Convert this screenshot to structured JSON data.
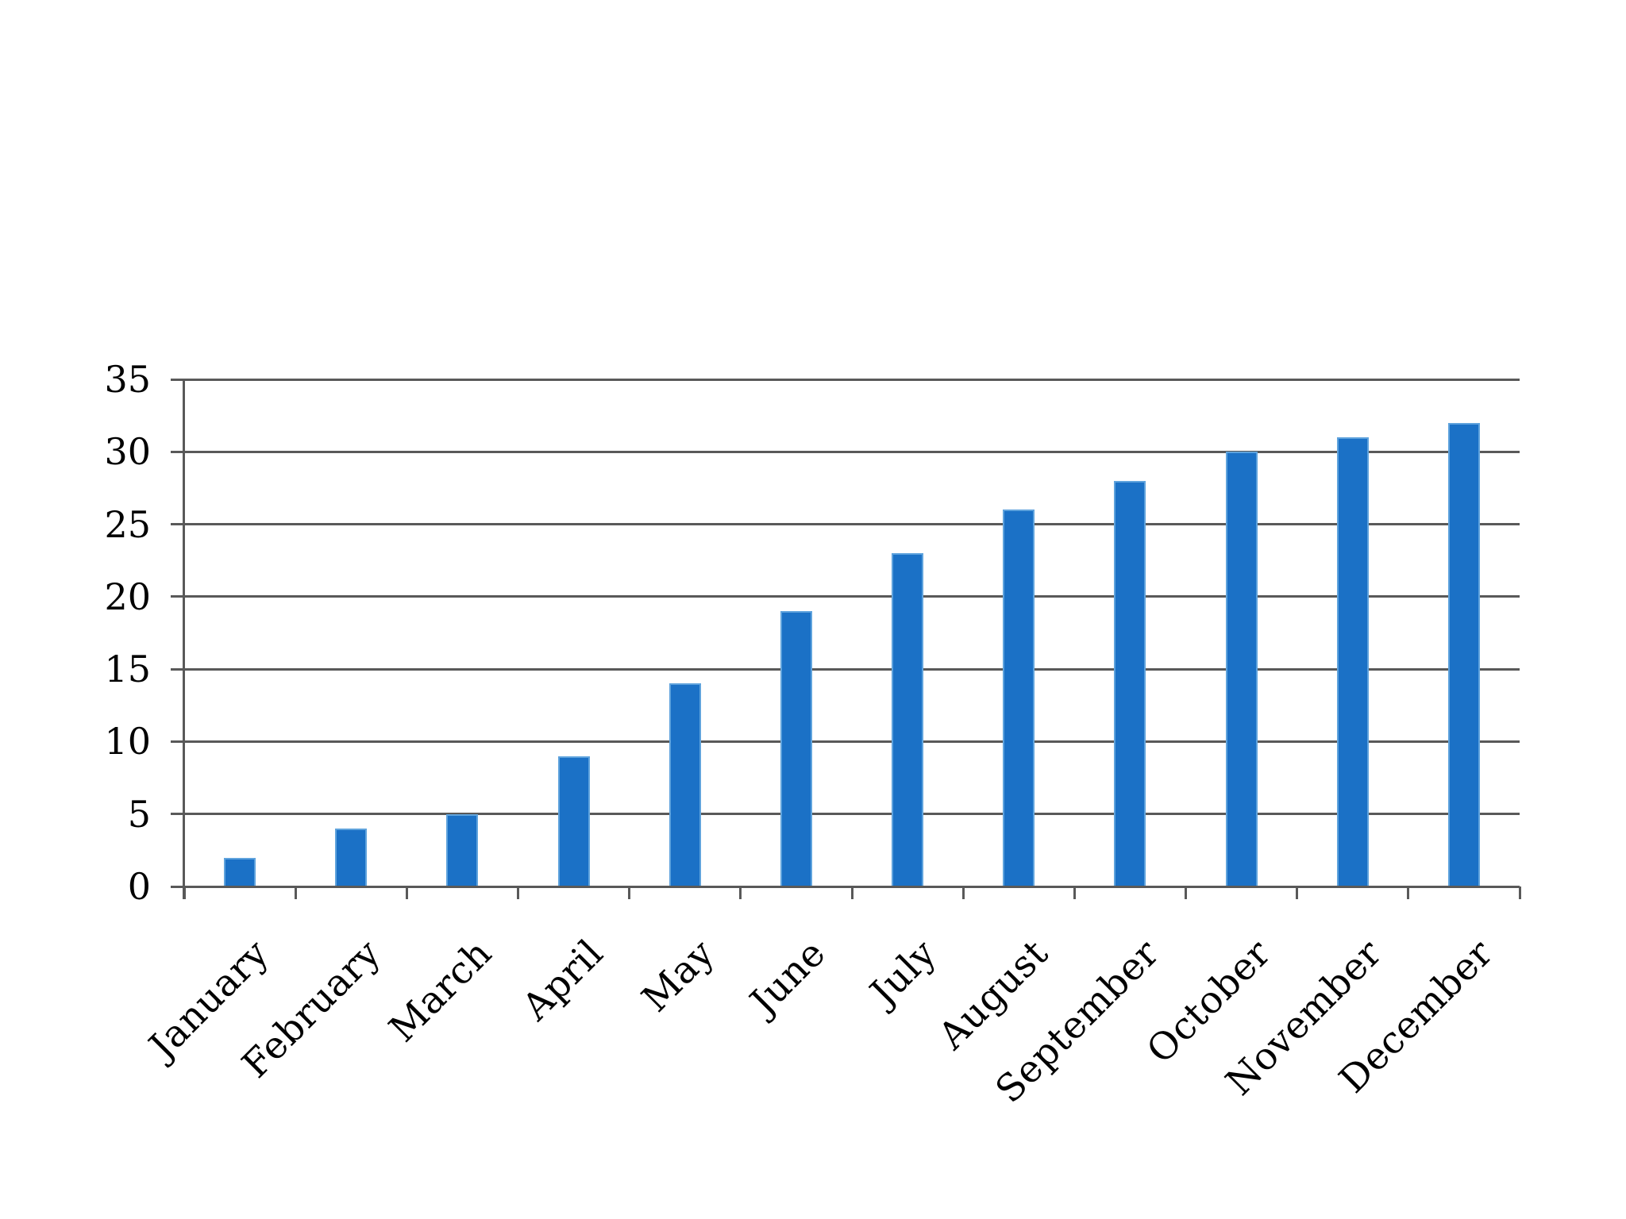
{
  "chart_data": {
    "type": "bar",
    "categories": [
      "January",
      "February",
      "March",
      "April",
      "May",
      "June",
      "July",
      "August",
      "September",
      "October",
      "November",
      "December"
    ],
    "values": [
      2,
      4,
      5,
      9,
      14,
      19,
      23,
      26,
      28,
      30,
      31,
      32
    ],
    "title": "",
    "xlabel": "",
    "ylabel": "",
    "ylim": [
      0,
      35
    ],
    "yticks": [
      0,
      5,
      10,
      15,
      20,
      25,
      30,
      35
    ],
    "grid": true,
    "legend": false,
    "bar_color": "#1B71C6",
    "bar_edge_color": "#5FA3DD",
    "grid_color": "#595959",
    "text_color": "#000000",
    "background_color": "#FFFFFF"
  }
}
